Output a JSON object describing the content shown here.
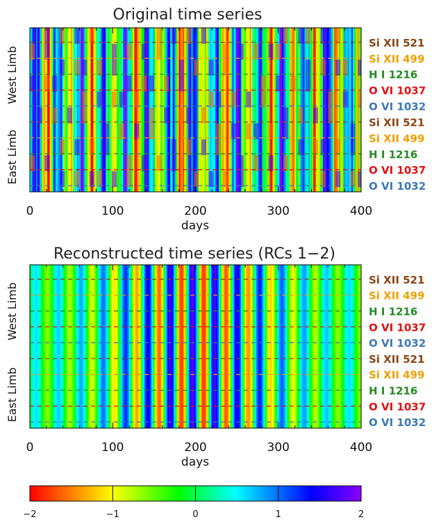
{
  "chart_data": [
    {
      "type": "heatmap",
      "title": "Original time series",
      "xlabel": "days",
      "xlim": [
        0,
        400
      ],
      "x_ticks": [
        "0",
        "100",
        "200",
        "300",
        "400"
      ],
      "y_group_labels": [
        "West Limb",
        "East Limb"
      ],
      "rows": [
        {
          "name": "Si XII 521",
          "color": "#8b4513"
        },
        {
          "name": "Si XII 499",
          "color": "#f0a000"
        },
        {
          "name": "H I 1216",
          "color": "#228b22"
        },
        {
          "name": "O VI 1037",
          "color": "#e01010"
        },
        {
          "name": "O VI 1032",
          "color": "#3a78b5"
        },
        {
          "name": "Si XII 521",
          "color": "#8b4513"
        },
        {
          "name": "Si XII 499",
          "color": "#f0a000"
        },
        {
          "name": "H I 1216",
          "color": "#228b22"
        },
        {
          "name": "O VI 1037",
          "color": "#e01010"
        },
        {
          "name": "O VI 1032",
          "color": "#3a78b5"
        }
      ],
      "value_range": [
        -2,
        2
      ],
      "pattern": "irregular quasi-periodic oscillations with ~27-day period"
    },
    {
      "type": "heatmap",
      "title": "Reconstructed time series (RCs 1−2)",
      "xlabel": "days",
      "xlim": [
        0,
        400
      ],
      "x_ticks": [
        "0",
        "100",
        "200",
        "300",
        "400"
      ],
      "y_group_labels": [
        "West Limb",
        "East Limb"
      ],
      "rows": [
        {
          "name": "Si XII 521",
          "color": "#8b4513"
        },
        {
          "name": "Si XII 499",
          "color": "#f0a000"
        },
        {
          "name": "H I 1216",
          "color": "#228b22"
        },
        {
          "name": "O VI 1037",
          "color": "#e01010"
        },
        {
          "name": "O VI 1032",
          "color": "#3a78b5"
        },
        {
          "name": "Si XII 521",
          "color": "#8b4513"
        },
        {
          "name": "Si XII 499",
          "color": "#f0a000"
        },
        {
          "name": "H I 1216",
          "color": "#228b22"
        },
        {
          "name": "O VI 1037",
          "color": "#e01010"
        },
        {
          "name": "O VI 1032",
          "color": "#3a78b5"
        }
      ],
      "value_range": [
        -2,
        2
      ],
      "pattern": "smooth periodic oscillation, ~27-day period, strongest between day 100 and 300"
    }
  ],
  "colorbar": {
    "min": -2,
    "max": 2,
    "tick_labels": [
      "−2",
      "−1",
      "0",
      "1",
      "2"
    ],
    "colors": [
      "#ff0000",
      "#ffff00",
      "#00ff00",
      "#00ffff",
      "#0000ff",
      "#8800ff"
    ]
  },
  "page": {
    "title_top": "Original time series",
    "title_bottom": "Reconstructed time series (RCs 1−2)",
    "xlabel": "days"
  }
}
